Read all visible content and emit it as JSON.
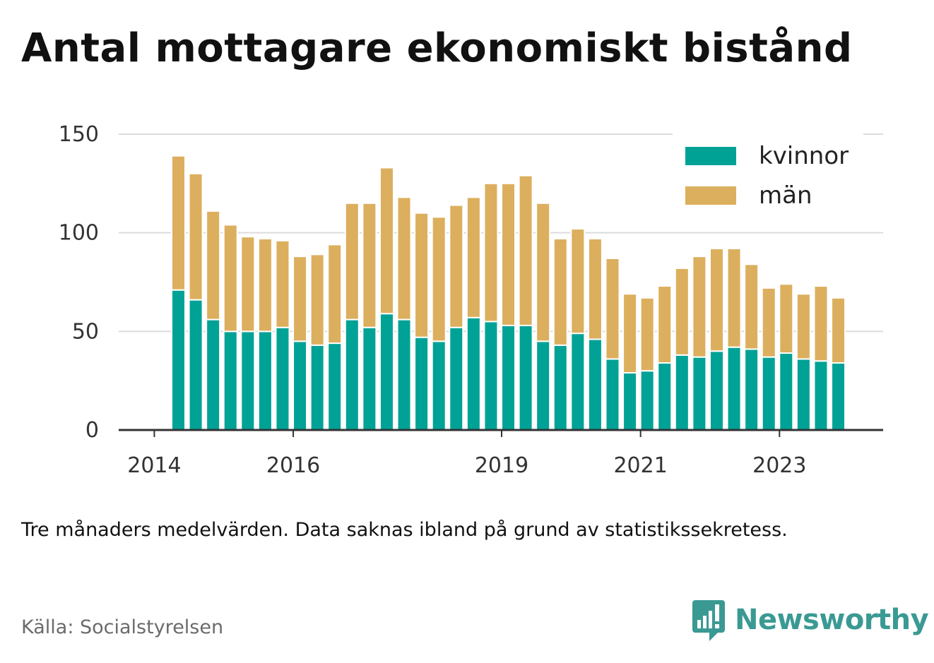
{
  "title": "Antal mottagare ekonomiskt bistånd",
  "note": "Tre månaders medelvärden. Data saknas ibland på grund av statistikssekretess.",
  "source": "Källa: Socialstyrelsen",
  "brand": {
    "name": "Newsworthy",
    "icon": "newsworthy-logo-icon",
    "color": "#3a9a93"
  },
  "chart_data": {
    "type": "bar",
    "stacked": true,
    "x_label_years": [
      "2014",
      "2016",
      "2019",
      "2021",
      "2023"
    ],
    "legend": [
      "kvinnor",
      "män"
    ],
    "legend_position": "top-right",
    "ylim": [
      0,
      150
    ],
    "yticks": [
      0,
      50,
      100,
      150
    ],
    "grid": true,
    "colors": {
      "kvinnor": "#00a295",
      "män": "#dcaf5e"
    },
    "categories": [
      "2014-Q2",
      "2014-Q3",
      "2014-Q4",
      "2015-Q1",
      "2015-Q2",
      "2015-Q3",
      "2015-Q4",
      "2016-Q1",
      "2016-Q2",
      "2016-Q3",
      "2016-Q4",
      "2017-Q1",
      "2017-Q2",
      "2017-Q3",
      "2017-Q4",
      "2018-Q1",
      "2018-Q2",
      "2018-Q3",
      "2018-Q4",
      "2019-Q1",
      "2019-Q2",
      "2019-Q3",
      "2019-Q4",
      "2020-Q1",
      "2020-Q2",
      "2020-Q3",
      "2020-Q4",
      "2021-Q1",
      "2021-Q2",
      "2021-Q3",
      "2021-Q4",
      "2022-Q1",
      "2022-Q2",
      "2022-Q3",
      "2022-Q4",
      "2023-Q1",
      "2023-Q2",
      "2023-Q3",
      "2023-Q4"
    ],
    "series": [
      {
        "name": "kvinnor",
        "values": [
          71,
          66,
          56,
          50,
          50,
          50,
          52,
          45,
          43,
          44,
          56,
          52,
          59,
          56,
          47,
          45,
          52,
          57,
          55,
          53,
          53,
          45,
          43,
          49,
          46,
          36,
          29,
          30,
          34,
          38,
          37,
          40,
          42,
          41,
          37,
          39,
          36,
          35,
          34
        ]
      },
      {
        "name": "män",
        "values": [
          68,
          64,
          55,
          54,
          48,
          47,
          44,
          43,
          46,
          50,
          59,
          63,
          74,
          62,
          63,
          63,
          62,
          61,
          70,
          72,
          76,
          70,
          54,
          53,
          51,
          51,
          40,
          37,
          39,
          44,
          51,
          52,
          50,
          43,
          35,
          35,
          33,
          38,
          33
        ]
      }
    ]
  }
}
